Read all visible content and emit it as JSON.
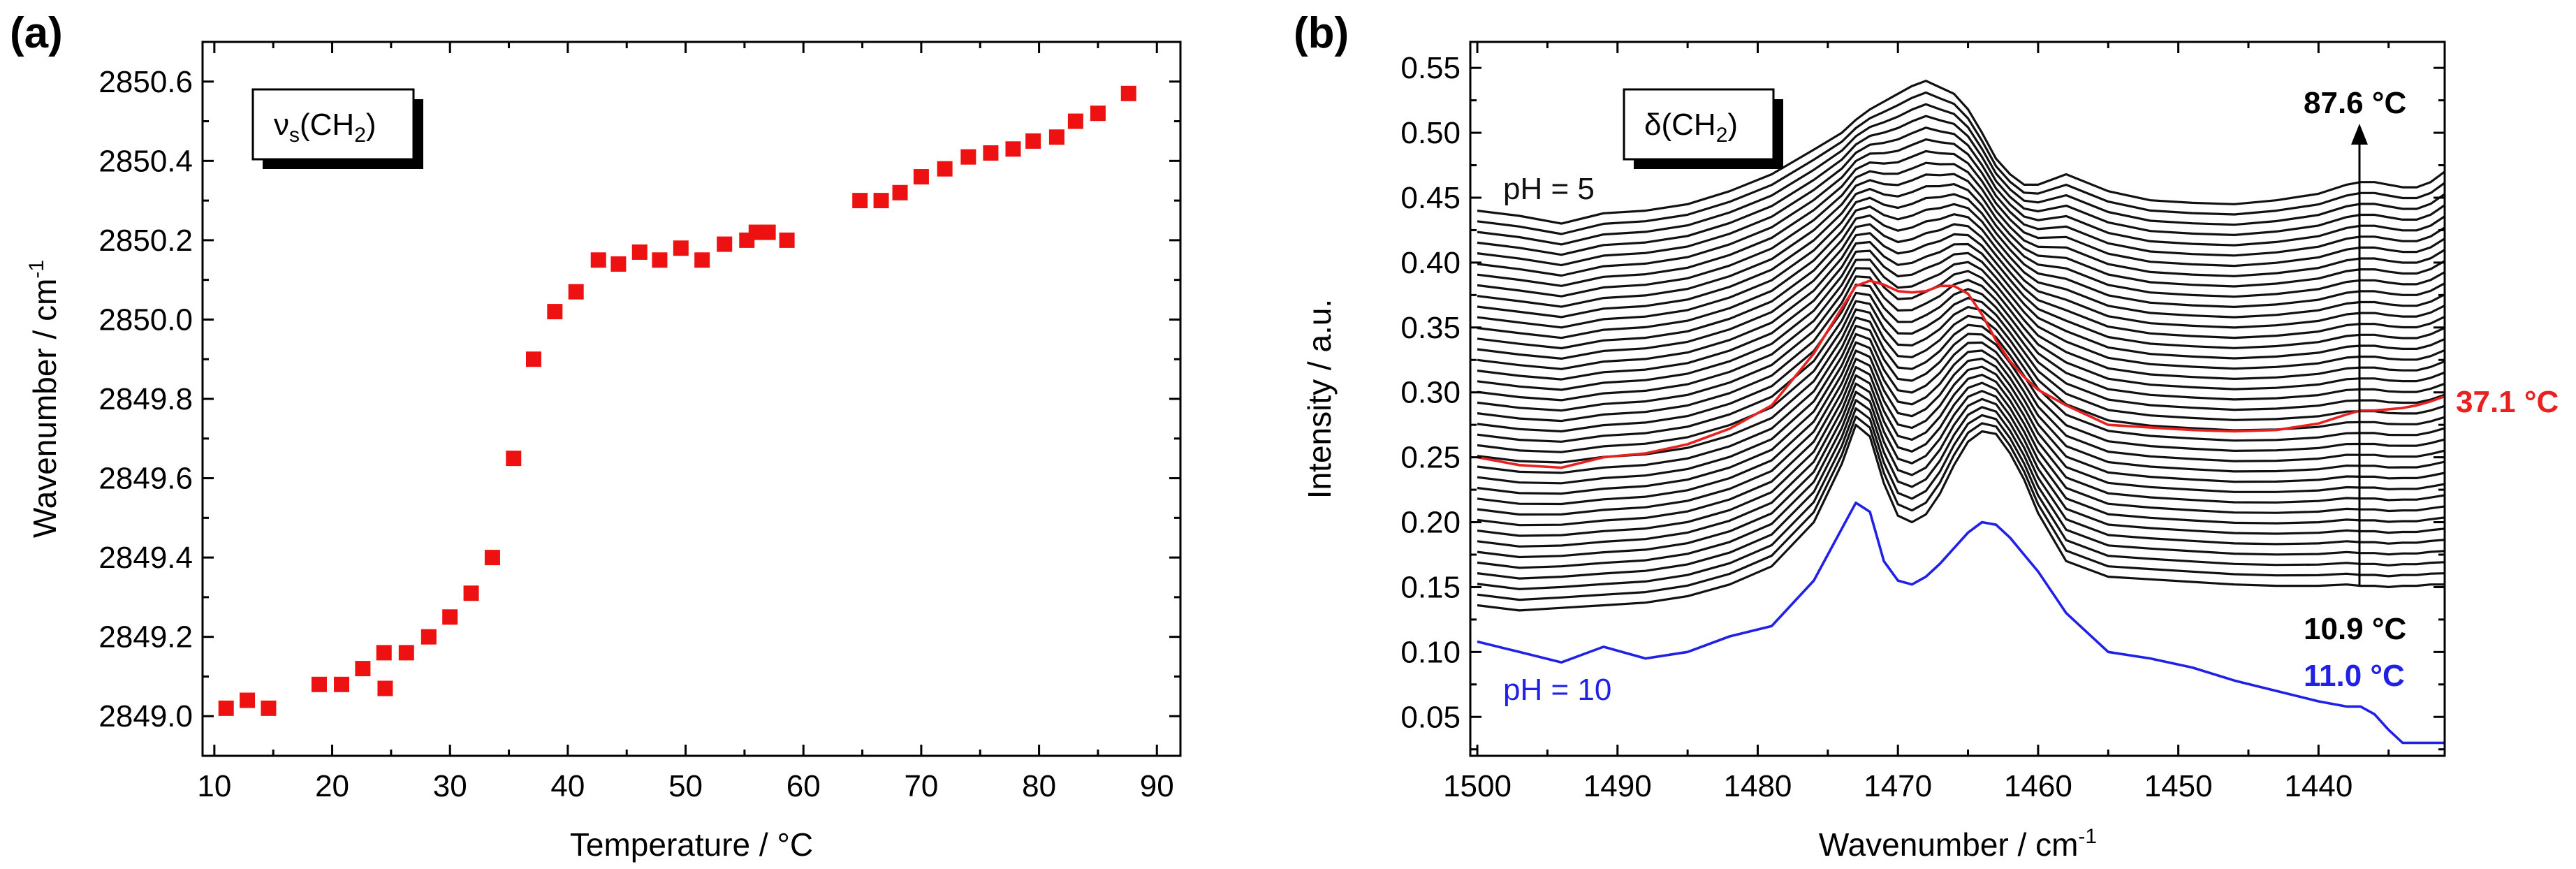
{
  "chart_data": [
    {
      "panel_label": "(a)",
      "type": "scatter",
      "xlabel": "Temperature / °C",
      "ylabel_main": "Wavenumber / cm",
      "ylabel_sup": "-1",
      "xlim": [
        9,
        92
      ],
      "ylim": [
        2848.9,
        2850.7
      ],
      "xticks": [
        "10",
        "20",
        "30",
        "40",
        "50",
        "60",
        "70",
        "80",
        "90"
      ],
      "yticks": [
        "2849.0",
        "2849.2",
        "2849.4",
        "2849.6",
        "2849.8",
        "2850.0",
        "2850.2",
        "2850.4",
        "2850.6"
      ],
      "marker_color": "#ee1111",
      "annotation": {
        "main": "ν",
        "sub1": "s",
        "mid": "(CH",
        "sub2": "2",
        "end": ")"
      },
      "series": [
        {
          "name": "νs(CH2)",
          "x": [
            11.0,
            12.8,
            14.6,
            18.9,
            20.8,
            22.6,
            24.4,
            24.5,
            26.3,
            28.2,
            30.0,
            31.8,
            33.6,
            35.4,
            37.1,
            38.9,
            40.7,
            42.6,
            44.3,
            46.1,
            47.8,
            49.6,
            51.4,
            53.3,
            55.2,
            56.0,
            57.0,
            58.6,
            64.8,
            66.6,
            68.2,
            70.0,
            72.0,
            74.0,
            75.9,
            77.8,
            79.5,
            81.5,
            83.1,
            85.0,
            87.6
          ],
          "y": [
            2849.02,
            2849.04,
            2849.02,
            2849.08,
            2849.08,
            2849.12,
            2849.16,
            2849.07,
            2849.16,
            2849.2,
            2849.25,
            2849.31,
            2849.4,
            2849.65,
            2849.9,
            2850.02,
            2850.07,
            2850.15,
            2850.14,
            2850.17,
            2850.15,
            2850.18,
            2850.15,
            2850.19,
            2850.2,
            2850.22,
            2850.22,
            2850.2,
            2850.3,
            2850.3,
            2850.32,
            2850.36,
            2850.38,
            2850.41,
            2850.42,
            2850.43,
            2850.45,
            2850.46,
            2850.5,
            2850.52,
            2850.57
          ]
        }
      ]
    },
    {
      "panel_label": "(b)",
      "type": "line",
      "xlabel_main": "Wavenumber / cm",
      "xlabel_sup": "-1",
      "ylabel": "Intensity / a.u.",
      "xlim": [
        1500.5,
        1431
      ],
      "ylim": [
        0.02,
        0.57
      ],
      "xticks": [
        "1500",
        "1490",
        "1480",
        "1470",
        "1460",
        "1450",
        "1440"
      ],
      "yticks": [
        "0.05",
        "0.10",
        "0.15",
        "0.20",
        "0.25",
        "0.30",
        "0.35",
        "0.40",
        "0.45",
        "0.50",
        "0.55"
      ],
      "annotation": {
        "main": "δ(CH",
        "sub": "2",
        "end": ")"
      },
      "labels": {
        "ph5": "pH = 5",
        "ph10": "pH = 10",
        "t_top": "87.6 °C",
        "t_bottom": "10.9 °C",
        "t_red": "37.1 °C",
        "t_blue": "11.0 °C"
      },
      "colors": {
        "black": "#111111",
        "red": "#e8201f",
        "blue": "#2020e6"
      },
      "x": [
        1500,
        1497,
        1494,
        1491,
        1488,
        1485,
        1482,
        1479,
        1476,
        1474,
        1473,
        1472,
        1471,
        1470,
        1469,
        1468,
        1467,
        1466,
        1465,
        1464,
        1463,
        1462,
        1461,
        1460,
        1458,
        1455,
        1452,
        1449,
        1446,
        1443,
        1440,
        1438,
        1437,
        1436,
        1435,
        1434,
        1433,
        1432,
        1431
      ],
      "black_series_count": 38,
      "black_base_bottom": [
        0.136,
        0.132,
        0.134,
        0.136,
        0.138,
        0.143,
        0.152,
        0.166,
        0.2,
        0.245,
        0.275,
        0.266,
        0.23,
        0.205,
        0.2,
        0.206,
        0.222,
        0.244,
        0.262,
        0.27,
        0.268,
        0.253,
        0.233,
        0.207,
        0.17,
        0.158,
        0.156,
        0.154,
        0.152,
        0.151,
        0.151,
        0.152,
        0.151,
        0.151,
        0.15,
        0.151,
        0.151,
        0.152,
        0.152
      ],
      "black_base_top": [
        0.44,
        0.436,
        0.43,
        0.438,
        0.44,
        0.445,
        0.455,
        0.468,
        0.487,
        0.5,
        0.51,
        0.518,
        0.524,
        0.53,
        0.536,
        0.54,
        0.535,
        0.53,
        0.518,
        0.5,
        0.48,
        0.468,
        0.46,
        0.46,
        0.468,
        0.455,
        0.448,
        0.446,
        0.445,
        0.448,
        0.453,
        0.46,
        0.462,
        0.462,
        0.46,
        0.458,
        0.458,
        0.462,
        0.47
      ],
      "red_series": [
        0.25,
        0.244,
        0.242,
        0.25,
        0.253,
        0.26,
        0.272,
        0.29,
        0.33,
        0.365,
        0.382,
        0.386,
        0.383,
        0.378,
        0.377,
        0.378,
        0.382,
        0.382,
        0.376,
        0.36,
        0.34,
        0.324,
        0.312,
        0.302,
        0.29,
        0.275,
        0.273,
        0.271,
        0.27,
        0.271,
        0.276,
        0.283,
        0.286,
        0.286,
        0.287,
        0.288,
        0.29,
        0.293,
        0.297
      ],
      "blue_series": [
        0.108,
        0.1,
        0.092,
        0.104,
        0.095,
        0.1,
        0.112,
        0.12,
        0.155,
        0.195,
        0.215,
        0.208,
        0.17,
        0.155,
        0.152,
        0.158,
        0.168,
        0.18,
        0.192,
        0.2,
        0.198,
        0.188,
        0.175,
        0.162,
        0.13,
        0.1,
        0.095,
        0.088,
        0.078,
        0.07,
        0.062,
        0.058,
        0.058,
        0.052,
        0.04,
        0.03,
        0.03,
        0.03,
        0.03
      ]
    }
  ]
}
